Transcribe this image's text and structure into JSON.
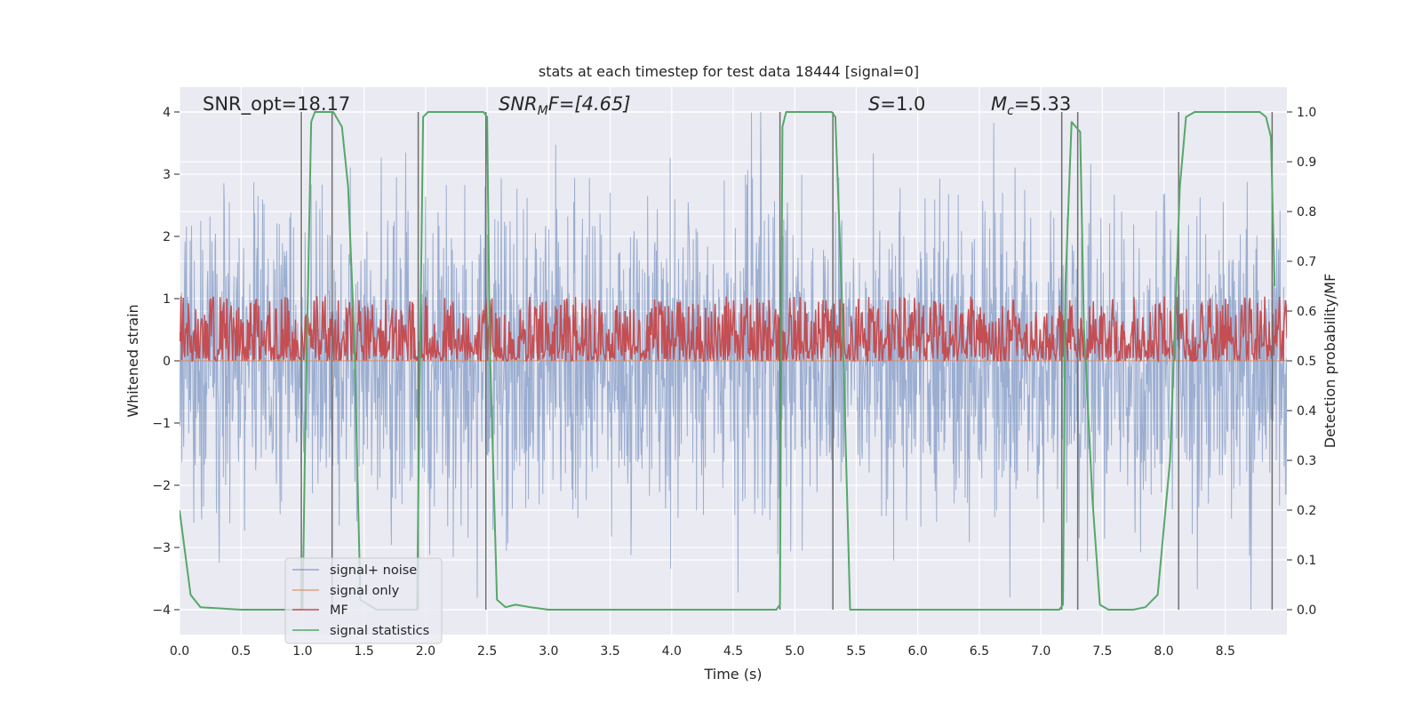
{
  "chart_data": {
    "type": "line",
    "title": "stats at each timestep for test data 18444 [signal=0]",
    "xlabel": "Time (s)",
    "ylabel_left": "Whitened strain",
    "ylabel_right": "Detection probability/MF",
    "xlim": [
      0.0,
      9.0
    ],
    "ylim_left": [
      -4.4,
      4.4
    ],
    "ylim_right": [
      -0.05,
      1.05
    ],
    "x_ticks": [
      "0.0",
      "0.5",
      "1.0",
      "1.5",
      "2.0",
      "2.5",
      "3.0",
      "3.5",
      "4.0",
      "4.5",
      "5.0",
      "5.5",
      "6.0",
      "6.5",
      "7.0",
      "7.5",
      "8.0",
      "8.5"
    ],
    "y_ticks_left": [
      "4",
      "3",
      "2",
      "1",
      "0",
      "−1",
      "−2",
      "−3",
      "−4"
    ],
    "y_ticks_right": [
      "1.0",
      "0.9",
      "0.8",
      "0.7",
      "0.6",
      "0.5",
      "0.4",
      "0.3",
      "0.2",
      "0.1",
      "0.0"
    ],
    "grid": true,
    "annotations": {
      "snr_opt": "SNR_opt=18.17",
      "snr_mf_main": "SNR",
      "snr_mf_sub": "M",
      "snr_mf_rest": "F=[4.65]",
      "s_main": "S",
      "s_rest": "=1.0",
      "mc_main": "M",
      "mc_sub": "c",
      "mc_rest": "=5.33"
    },
    "legend_position": "lower-left",
    "series": [
      {
        "name": "signal+ noise",
        "color": "#4c72b0",
        "axis": "left",
        "description_range": [
          -4.0,
          4.0
        ]
      },
      {
        "name": "signal only",
        "color": "#dd8452",
        "axis": "left",
        "values": [
          0
        ]
      },
      {
        "name": "MF",
        "color": "#c44e52",
        "axis": "right",
        "range": [
          0.5,
          0.63
        ]
      },
      {
        "name": "signal statistics",
        "color": "#55a868",
        "axis": "right",
        "x": [
          0.0,
          0.09,
          0.17,
          0.5,
          1.0,
          1.02,
          1.07,
          1.1,
          1.15,
          1.25,
          1.32,
          1.37,
          1.42,
          1.47,
          1.6,
          1.93,
          1.95,
          1.98,
          2.02,
          2.1,
          2.47,
          2.5,
          2.52,
          2.58,
          2.65,
          2.73,
          2.85,
          3.0,
          4.85,
          4.88,
          4.9,
          4.93,
          5.0,
          5.3,
          5.33,
          5.38,
          5.45,
          6.0,
          7.15,
          7.18,
          7.2,
          7.25,
          7.32,
          7.35,
          7.42,
          7.48,
          7.55,
          7.75,
          7.85,
          7.95,
          8.05,
          8.13,
          8.18,
          8.25,
          8.7,
          8.78,
          8.83,
          8.87,
          8.9
        ],
        "y": [
          0.2,
          0.03,
          0.005,
          0.0,
          0.0,
          0.33,
          0.98,
          1.0,
          1.0,
          1.0,
          0.97,
          0.85,
          0.55,
          0.02,
          0.0,
          0.0,
          0.42,
          0.99,
          1.0,
          1.0,
          1.0,
          0.99,
          0.55,
          0.02,
          0.005,
          0.01,
          0.005,
          0.0,
          0.0,
          0.01,
          0.97,
          1.0,
          1.0,
          1.0,
          0.99,
          0.65,
          0.0,
          0.0,
          0.0,
          0.01,
          0.65,
          0.98,
          0.96,
          0.57,
          0.22,
          0.01,
          0.0,
          0.0,
          0.005,
          0.03,
          0.3,
          0.85,
          0.99,
          1.0,
          1.0,
          1.0,
          0.99,
          0.95,
          0.65
        ]
      }
    ],
    "vertical_lines_x": [
      0.99,
      1.24,
      1.94,
      2.49,
      4.88,
      5.31,
      7.17,
      7.3,
      8.12,
      8.88
    ],
    "colors": {
      "plot_background": "#eaeaf2",
      "grid": "#ffffff",
      "vline": "#6e6e6e"
    }
  }
}
